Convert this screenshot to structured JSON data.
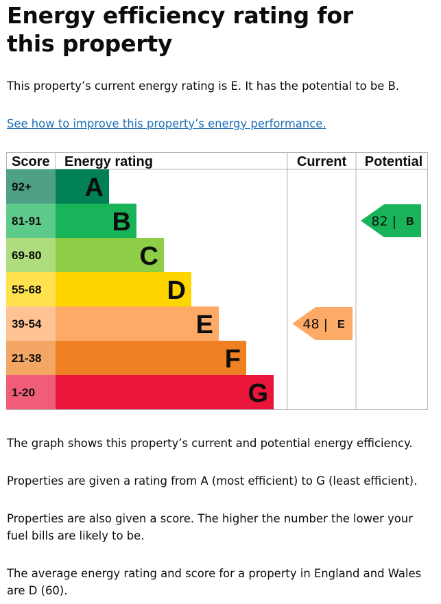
{
  "page": {
    "title": "Energy efficiency rating for this property",
    "summary": "This property’s current energy rating is E. It has the potential to be B.",
    "improve_link": "See how to improve this property’s energy performance.",
    "paragraphs": [
      "The graph shows this property’s current and potential energy efficiency.",
      "Properties are given a rating from A (most efficient) to G (least efficient).",
      "Properties are also given a score. The higher the number the lower your fuel bills are likely to be.",
      "The average energy rating and score for a property in England and Wales are D (60)."
    ]
  },
  "chart_data": {
    "type": "bar",
    "headers": {
      "score": "Score",
      "rating": "Energy rating",
      "current": "Current",
      "potential": "Potential"
    },
    "bands": [
      {
        "letter": "A",
        "score": "92+",
        "color": "#008054",
        "label_color": "#4ea184"
      },
      {
        "letter": "B",
        "score": "81-91",
        "color": "#19b459",
        "label_color": "#5fcb8b"
      },
      {
        "letter": "C",
        "score": "69-80",
        "color": "#8dce46",
        "label_color": "#afdd7e"
      },
      {
        "letter": "D",
        "score": "55-68",
        "color": "#ffd500",
        "label_color": "#ffe24d"
      },
      {
        "letter": "E",
        "score": "39-54",
        "color": "#fcaa65",
        "label_color": "#fdc394"
      },
      {
        "letter": "F",
        "score": "21-38",
        "color": "#ef8023",
        "label_color": "#f4a665"
      },
      {
        "letter": "G",
        "score": "1-20",
        "color": "#e9153b",
        "label_color": "#f05d79"
      }
    ],
    "current": {
      "value": 48,
      "band": "E",
      "text": "48 |",
      "color": "#fcaa65"
    },
    "potential": {
      "value": 82,
      "band": "B",
      "text": "82 |",
      "color": "#19b459"
    }
  }
}
